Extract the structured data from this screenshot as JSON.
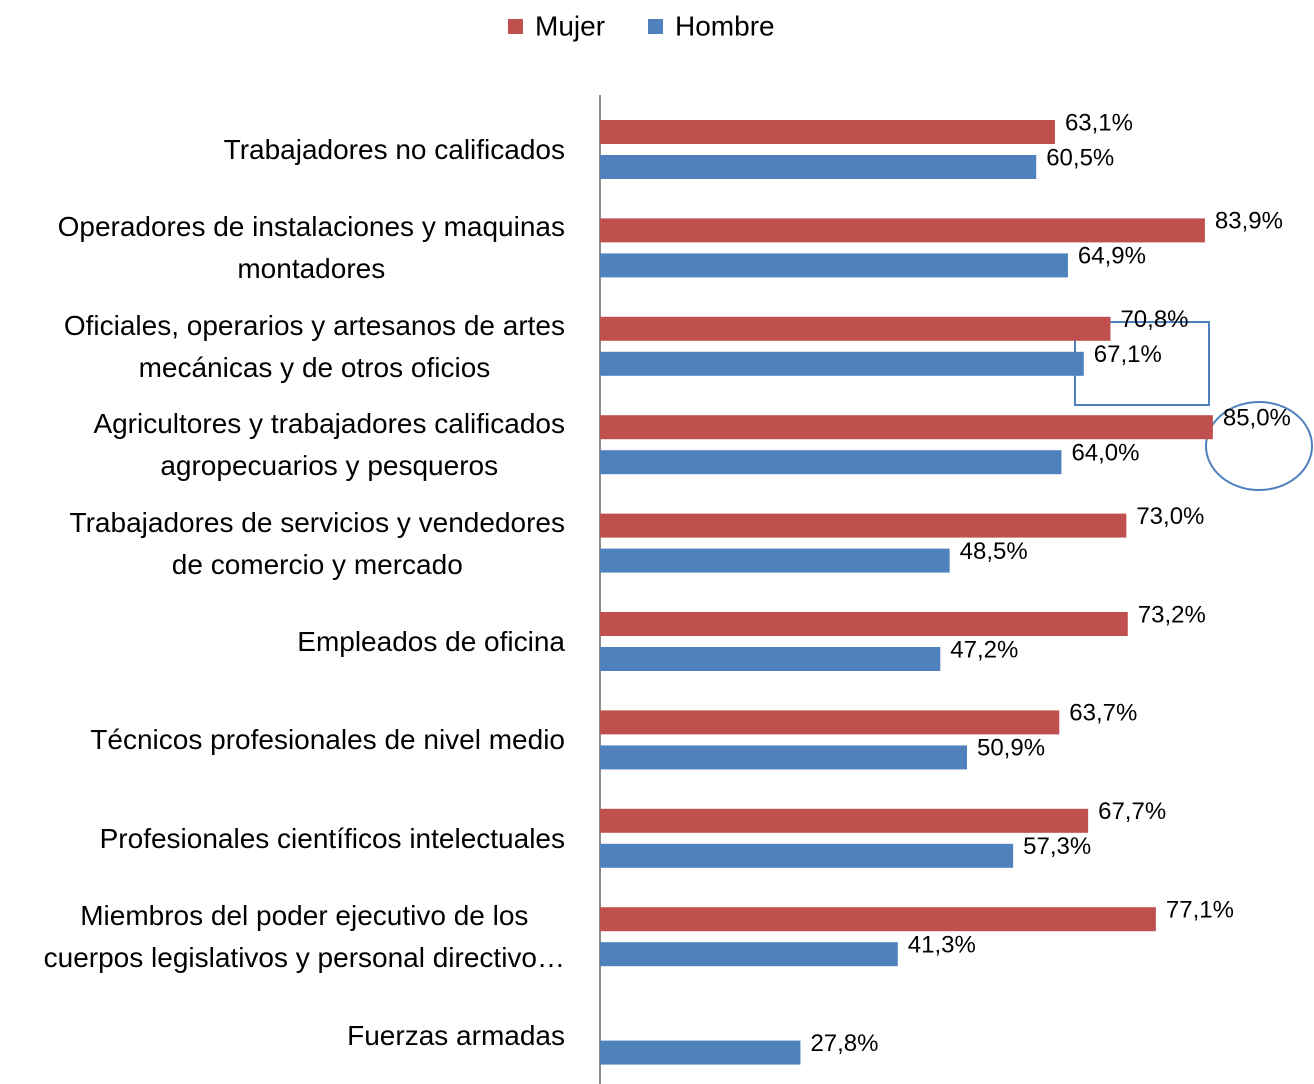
{
  "chart_data": {
    "type": "hbar",
    "categories": [
      "Trabajadores no calificados",
      "Operadores de instalaciones y maquinas\nmontadores",
      "Oficiales, operarios y artesanos de artes\nmecánicas y de otros oficios",
      "Agricultores y trabajadores calificados\nagropecuarios y pesqueros",
      "Trabajadores de servicios y vendedores\nde comercio y mercado",
      "Empleados de oficina",
      "Técnicos profesionales de nivel medio",
      "Profesionales científicos intelectuales",
      "Miembros del poder ejecutivo de los\ncuerpos legislativos y personal directivo…",
      "Fuerzas armadas"
    ],
    "series": [
      {
        "name": "Mujer",
        "color": "#c0504d",
        "values": [
          63.1,
          83.9,
          70.8,
          85.0,
          73.0,
          73.2,
          63.7,
          67.7,
          77.1,
          null
        ],
        "value_labels": [
          "63,1%",
          "83,9%",
          "70,8%",
          "85,0%",
          "73,0%",
          "73,2%",
          "63,7%",
          "67,7%",
          "77,1%",
          null
        ]
      },
      {
        "name": "Hombre",
        "color": "#4f81bd",
        "values": [
          60.5,
          64.9,
          67.1,
          64.0,
          48.5,
          47.2,
          50.9,
          57.3,
          41.3,
          27.8
        ],
        "value_labels": [
          "60,5%",
          "64,9%",
          "67,1%",
          "64,0%",
          "48,5%",
          "47,2%",
          "50,9%",
          "57,3%",
          "41,3%",
          "27,8%"
        ]
      }
    ],
    "legend": "top"
  }
}
